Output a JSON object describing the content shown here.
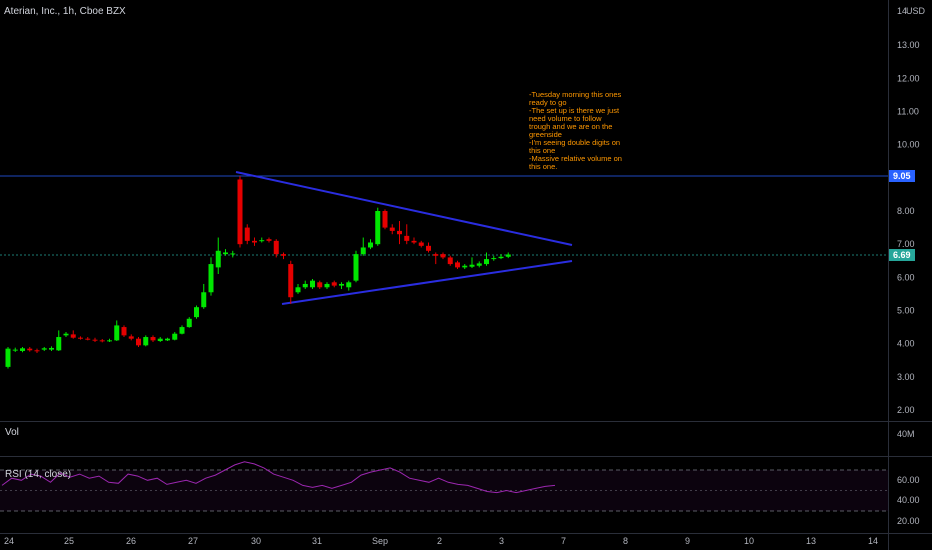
{
  "header": {
    "title": "Aterian, Inc., 1h, Cboe BZX",
    "currency": "USD"
  },
  "annotation": {
    "lines": [
      "-Tuesday morning this ones",
      "ready to go",
      "-The set up is there we just",
      "need volume to follow",
      "trough and we are on the",
      "greenside",
      "-I'm seeing double digits on",
      "this one",
      "-Massive relative volume on",
      "this one."
    ],
    "color": "#ff9800"
  },
  "price_axis": {
    "ticks": [
      "13.00",
      "12.00",
      "11.00",
      "10.00",
      "8.00",
      "7.00",
      "6.00",
      "5.00",
      "4.00",
      "3.00",
      "2.00"
    ],
    "top_tick_label": "14",
    "resistance": {
      "value": 9.05,
      "label": "9.05",
      "color": "#2962ff"
    },
    "current": {
      "value": 6.69,
      "label": "6.69",
      "color": "#26a69a"
    }
  },
  "volume_pane": {
    "label": "Vol",
    "axis_label": "40M"
  },
  "rsi_pane": {
    "label": "RSI (14, close)",
    "ticks": [
      "60.00",
      "40.00",
      "20.00"
    ],
    "upper": 70,
    "lower": 30,
    "mid": 50,
    "color": "#9c27b0"
  },
  "time_axis": {
    "labels": [
      "24",
      "25",
      "26",
      "27",
      "30",
      "31",
      "Sep",
      "2",
      "3",
      "7",
      "8",
      "9",
      "10",
      "13",
      "14"
    ]
  },
  "chart_data": {
    "type": "candlestick",
    "title": "Aterian, Inc., 1h, Cboe BZX",
    "ylim": [
      2,
      14
    ],
    "up_color": "#00e600",
    "down_color": "#e60000",
    "candles": [
      [
        3.3,
        3.85,
        3.9,
        3.25
      ],
      [
        3.8,
        3.82,
        3.88,
        3.75
      ],
      [
        3.78,
        3.86,
        3.9,
        3.74
      ],
      [
        3.85,
        3.8,
        3.9,
        3.76
      ],
      [
        3.8,
        3.78,
        3.85,
        3.72
      ],
      [
        3.82,
        3.86,
        3.9,
        3.78
      ],
      [
        3.82,
        3.87,
        3.92,
        3.78
      ],
      [
        3.8,
        4.2,
        4.4,
        3.78
      ],
      [
        4.25,
        4.3,
        4.35,
        4.2
      ],
      [
        4.28,
        4.18,
        4.4,
        4.15
      ],
      [
        4.18,
        4.15,
        4.22,
        4.12
      ],
      [
        4.15,
        4.12,
        4.2,
        4.1
      ],
      [
        4.12,
        4.1,
        4.18,
        4.05
      ],
      [
        4.1,
        4.08,
        4.14,
        4.04
      ],
      [
        4.08,
        4.1,
        4.15,
        4.05
      ],
      [
        4.1,
        4.55,
        4.7,
        4.08
      ],
      [
        4.5,
        4.25,
        4.55,
        4.2
      ],
      [
        4.22,
        4.15,
        4.28,
        4.1
      ],
      [
        4.15,
        3.95,
        4.2,
        3.9
      ],
      [
        3.95,
        4.2,
        4.25,
        3.92
      ],
      [
        4.2,
        4.1,
        4.25,
        4.05
      ],
      [
        4.08,
        4.15,
        4.2,
        4.05
      ],
      [
        4.1,
        4.15,
        4.18,
        4.08
      ],
      [
        4.12,
        4.3,
        4.35,
        4.1
      ],
      [
        4.3,
        4.5,
        4.55,
        4.28
      ],
      [
        4.5,
        4.75,
        4.8,
        4.48
      ],
      [
        4.8,
        5.1,
        5.15,
        4.75
      ],
      [
        5.1,
        5.55,
        5.8,
        5.05
      ],
      [
        5.55,
        6.4,
        6.6,
        5.45
      ],
      [
        6.3,
        6.8,
        7.2,
        6.1
      ],
      [
        6.7,
        6.75,
        6.85,
        6.65
      ],
      [
        6.7,
        6.72,
        6.8,
        6.6
      ],
      [
        8.95,
        7.0,
        9.05,
        6.9
      ],
      [
        7.5,
        7.1,
        7.6,
        7.0
      ],
      [
        7.1,
        7.05,
        7.2,
        6.95
      ],
      [
        7.1,
        7.12,
        7.2,
        7.05
      ],
      [
        7.15,
        7.1,
        7.2,
        7.05
      ],
      [
        7.1,
        6.7,
        7.15,
        6.6
      ],
      [
        6.7,
        6.65,
        6.75,
        6.55
      ],
      [
        6.4,
        5.4,
        6.5,
        5.2
      ],
      [
        5.55,
        5.7,
        5.8,
        5.5
      ],
      [
        5.7,
        5.8,
        5.9,
        5.65
      ],
      [
        5.7,
        5.9,
        5.95,
        5.65
      ],
      [
        5.85,
        5.7,
        5.9,
        5.65
      ],
      [
        5.7,
        5.8,
        5.85,
        5.65
      ],
      [
        5.85,
        5.75,
        5.9,
        5.7
      ],
      [
        5.75,
        5.8,
        5.85,
        5.65
      ],
      [
        5.7,
        5.85,
        5.9,
        5.6
      ],
      [
        5.9,
        6.7,
        6.8,
        5.85
      ],
      [
        6.7,
        6.9,
        7.2,
        6.65
      ],
      [
        6.9,
        7.05,
        7.15,
        6.85
      ],
      [
        7.0,
        8.0,
        8.1,
        6.95
      ],
      [
        8.0,
        7.5,
        8.05,
        7.45
      ],
      [
        7.5,
        7.4,
        7.6,
        7.3
      ],
      [
        7.4,
        7.3,
        7.7,
        7.0
      ],
      [
        7.25,
        7.1,
        7.6,
        7.0
      ],
      [
        7.1,
        7.05,
        7.2,
        7.0
      ],
      [
        7.05,
        6.95,
        7.1,
        6.9
      ],
      [
        6.95,
        6.8,
        7.05,
        6.75
      ],
      [
        6.7,
        6.65,
        6.75,
        6.4
      ],
      [
        6.7,
        6.6,
        6.75,
        6.55
      ],
      [
        6.6,
        6.4,
        6.65,
        6.35
      ],
      [
        6.45,
        6.3,
        6.5,
        6.25
      ],
      [
        6.3,
        6.35,
        6.4,
        6.25
      ],
      [
        6.32,
        6.38,
        6.6,
        6.28
      ],
      [
        6.35,
        6.42,
        6.48,
        6.3
      ],
      [
        6.4,
        6.55,
        6.75,
        6.35
      ],
      [
        6.55,
        6.58,
        6.65,
        6.5
      ],
      [
        6.58,
        6.62,
        6.7,
        6.55
      ],
      [
        6.62,
        6.69,
        6.75,
        6.58
      ]
    ],
    "trendlines": [
      {
        "from": [
          0,
          9.15
        ],
        "to": [
          76,
          6.95
        ]
      },
      {
        "from": [
          36,
          5.15
        ],
        "to": [
          76,
          6.45
        ]
      }
    ],
    "rsi": [
      55,
      62,
      60,
      66,
      64,
      58,
      67,
      63,
      66,
      62,
      64,
      58,
      57,
      66,
      64,
      60,
      62,
      56,
      58,
      60,
      57,
      62,
      65,
      70,
      75,
      78,
      76,
      72,
      66,
      63,
      60,
      55,
      53,
      55,
      52,
      55,
      58,
      65,
      68,
      70,
      72,
      68,
      62,
      60,
      58,
      62,
      58,
      56,
      55,
      52,
      49,
      48,
      50,
      48,
      50,
      52,
      54,
      55
    ]
  }
}
